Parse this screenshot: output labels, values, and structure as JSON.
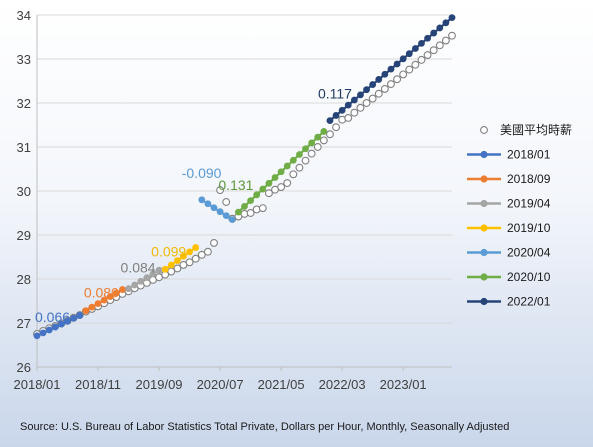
{
  "chart_data": {
    "type": "line",
    "title": "",
    "xlabel": "",
    "ylabel": "",
    "ylim": [
      26,
      34
    ],
    "yticks": [
      26,
      27,
      28,
      29,
      30,
      31,
      32,
      33,
      34
    ],
    "x_range": [
      "2018-01",
      "2023-09"
    ],
    "xtick_labels": [
      "2018/01",
      "2018/11",
      "2019/09",
      "2020/07",
      "2021/05",
      "2022/03",
      "2023/01"
    ],
    "xtick_months": [
      "2018-01",
      "2018-11",
      "2019-09",
      "2020-07",
      "2021-05",
      "2022-03",
      "2023-01"
    ],
    "grid": true,
    "legend_position": "right",
    "observed": {
      "name": "美國平均時薪",
      "marker": "open-circle",
      "color": "#808080",
      "start": "2018-01",
      "values": [
        26.75,
        26.82,
        26.88,
        26.93,
        26.99,
        27.05,
        27.12,
        27.18,
        27.26,
        27.32,
        27.38,
        27.45,
        27.52,
        27.59,
        27.66,
        27.72,
        27.79,
        27.85,
        27.91,
        27.98,
        28.04,
        28.1,
        28.17,
        28.24,
        28.32,
        28.38,
        28.46,
        28.55,
        28.62,
        28.82,
        30.02,
        29.75,
        29.37,
        29.42,
        29.48,
        29.5,
        29.58,
        29.61,
        29.95,
        30.03,
        30.09,
        30.18,
        30.38,
        30.53,
        30.69,
        30.85,
        31.0,
        31.15,
        31.29,
        31.45,
        31.62,
        31.66,
        31.78,
        31.89,
        32.0,
        32.1,
        32.21,
        32.32,
        32.43,
        32.54,
        32.65,
        32.76,
        32.87,
        32.98,
        33.09,
        33.2,
        33.31,
        33.42,
        33.53
      ]
    },
    "series": [
      {
        "name": "2018/01",
        "color": "#4472C4",
        "start": "2018-01",
        "end": "2018-08",
        "intercept": 26.71,
        "slope": 0.066,
        "label": "0.066",
        "label_color": "#4472C4"
      },
      {
        "name": "2018/09",
        "color": "#ED7D31",
        "start": "2018-09",
        "end": "2019-03",
        "intercept": 27.28,
        "slope": 0.08,
        "label": "0.080",
        "label_color": "#ED7D31"
      },
      {
        "name": "2019/04",
        "color": "#A5A5A5",
        "start": "2019-04",
        "end": "2019-09",
        "intercept": 27.78,
        "slope": 0.084,
        "label": "0.084",
        "label_color": "#808080"
      },
      {
        "name": "2019/10",
        "color": "#FFC000",
        "start": "2019-10",
        "end": "2020-03",
        "intercept": 28.22,
        "slope": 0.099,
        "label": "0.099",
        "label_color": "#F2B800"
      },
      {
        "name": "2020/04",
        "color": "#5B9BD5",
        "start": "2020-04",
        "end": "2020-09",
        "intercept": 29.8,
        "slope": -0.09,
        "label": "-0.090",
        "label_color": "#5B9BD5"
      },
      {
        "name": "2020/10",
        "color": "#70AD47",
        "start": "2020-10",
        "end": "2021-12",
        "intercept": 29.52,
        "slope": 0.131,
        "label": "0.131",
        "label_color": "#5E9A3A"
      },
      {
        "name": "2022/01",
        "color": "#264478",
        "start": "2022-01",
        "end": "2023-09",
        "intercept": 31.6,
        "slope": 0.117,
        "label": "0.117",
        "label_color": "#1F3A68"
      }
    ]
  },
  "source": {
    "text": "Source: U.S. Bureau of Labor Statistics    Total Private, Dollars per Hour, Monthly, Seasonally Adjusted"
  }
}
